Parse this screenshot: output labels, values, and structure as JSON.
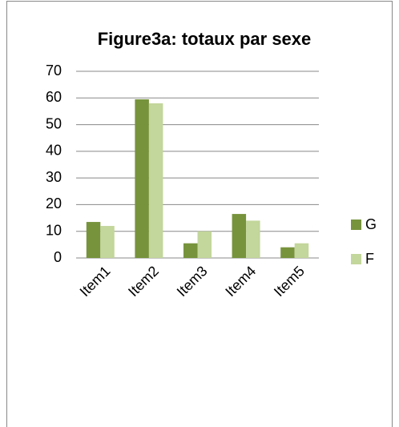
{
  "chart_data": {
    "type": "bar",
    "title": "Figure3a: totaux  par sexe",
    "categories": [
      "Item1",
      "Item2",
      "Item3",
      "Item4",
      "Item5"
    ],
    "series": [
      {
        "name": "G",
        "color": "#77933c",
        "values": [
          13.5,
          59.5,
          5.5,
          16.5,
          4
        ]
      },
      {
        "name": "F",
        "color": "#c3d69b",
        "values": [
          12,
          58,
          10,
          14,
          5.5
        ]
      }
    ],
    "ylim": [
      0,
      70
    ],
    "yticks": [
      0,
      10,
      20,
      30,
      40,
      50,
      60,
      70
    ],
    "grid": true,
    "legend": "right"
  }
}
